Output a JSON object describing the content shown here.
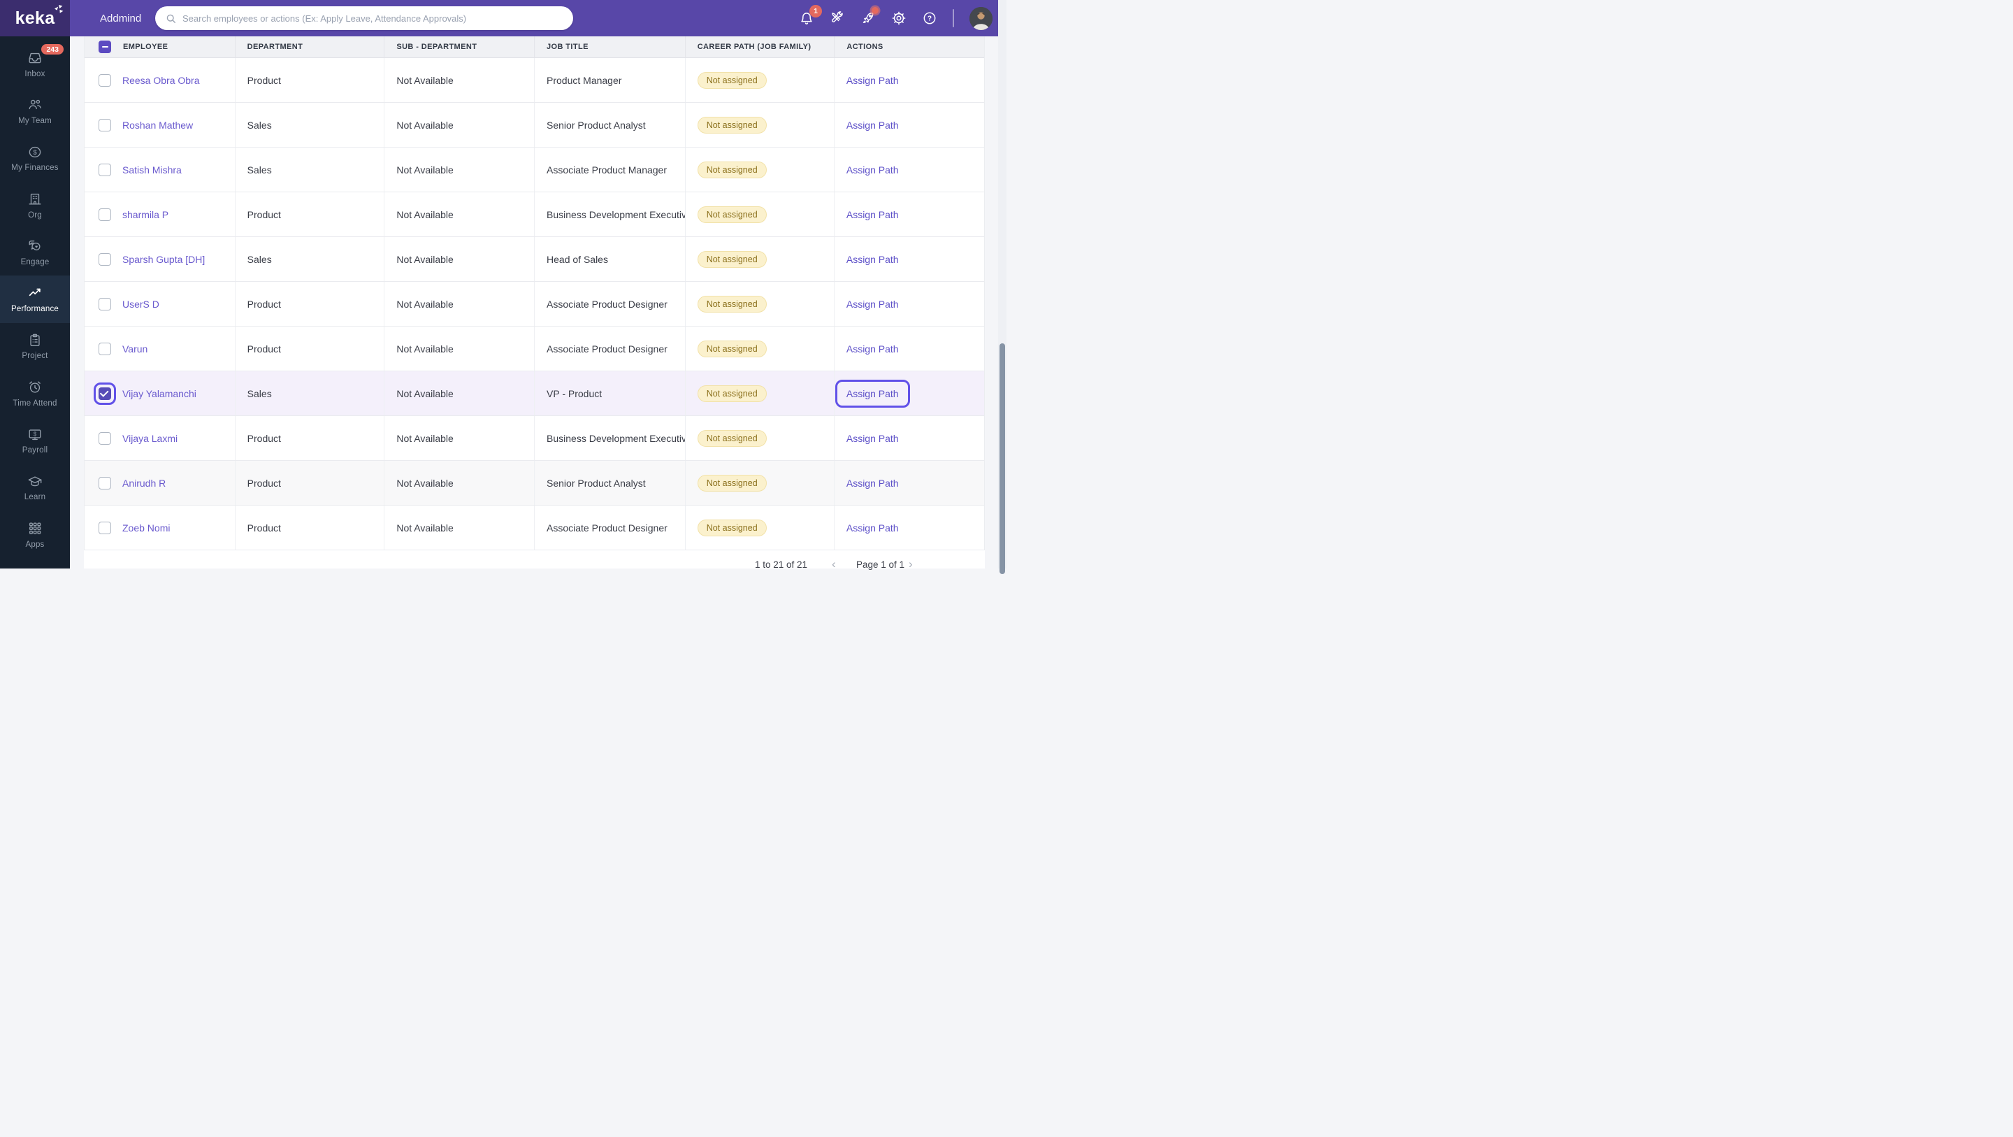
{
  "topbar": {
    "brand": "keka",
    "workspace": "Addmind",
    "search": {
      "placeholder": "Search employees or actions (Ex: Apply Leave, Attendance Approvals)"
    },
    "notification_badge": "1"
  },
  "sidebar": {
    "items": [
      {
        "icon": "inbox-icon",
        "label": "Inbox",
        "badge": "243",
        "active": false
      },
      {
        "icon": "people-icon",
        "label": "My Team",
        "active": false
      },
      {
        "icon": "dollar-circle-icon",
        "label": "My Finances",
        "active": false
      },
      {
        "icon": "building-icon",
        "label": "Org",
        "active": false
      },
      {
        "icon": "chat-heart-icon",
        "label": "Engage",
        "active": false
      },
      {
        "icon": "trending-up-icon",
        "label": "Performance",
        "active": true
      },
      {
        "icon": "clipboard-icon",
        "label": "Project",
        "active": false
      },
      {
        "icon": "alarm-clock-icon",
        "label": "Time Attend",
        "active": false
      },
      {
        "icon": "monitor-dollar-icon",
        "label": "Payroll",
        "active": false
      },
      {
        "icon": "graduation-cap-icon",
        "label": "Learn",
        "active": false
      },
      {
        "icon": "apps-grid-icon",
        "label": "Apps",
        "active": false
      }
    ]
  },
  "table": {
    "columns": [
      "EMPLOYEE",
      "DEPARTMENT",
      "SUB - DEPARTMENT",
      "JOB TITLE",
      "CAREER PATH (JOB FAMILY)",
      "ACTIONS"
    ],
    "header_checkbox_state": "indeterminate",
    "rows": [
      {
        "name": "Reesa Obra Obra",
        "department": "Product",
        "sub_department": "Not Available",
        "job_title": "Product Manager",
        "career_path": "Not assigned",
        "action": "Assign Path",
        "selected": false,
        "shaded": false
      },
      {
        "name": "Roshan Mathew",
        "department": "Sales",
        "sub_department": "Not Available",
        "job_title": "Senior Product Analyst",
        "career_path": "Not assigned",
        "action": "Assign Path",
        "selected": false,
        "shaded": false
      },
      {
        "name": "Satish Mishra",
        "department": "Sales",
        "sub_department": "Not Available",
        "job_title": "Associate Product Manager",
        "career_path": "Not assigned",
        "action": "Assign Path",
        "selected": false,
        "shaded": false
      },
      {
        "name": "sharmila P",
        "department": "Product",
        "sub_department": "Not Available",
        "job_title": "Business Development Executiv",
        "career_path": "Not assigned",
        "action": "Assign Path",
        "selected": false,
        "shaded": false
      },
      {
        "name": "Sparsh Gupta [DH]",
        "department": "Sales",
        "sub_department": "Not Available",
        "job_title": "Head of Sales",
        "career_path": "Not assigned",
        "action": "Assign Path",
        "selected": false,
        "shaded": false
      },
      {
        "name": "UserS D",
        "department": "Product",
        "sub_department": "Not Available",
        "job_title": "Associate Product Designer",
        "career_path": "Not assigned",
        "action": "Assign Path",
        "selected": false,
        "shaded": false
      },
      {
        "name": "Varun",
        "department": "Product",
        "sub_department": "Not Available",
        "job_title": "Associate Product Designer",
        "career_path": "Not assigned",
        "action": "Assign Path",
        "selected": false,
        "shaded": false
      },
      {
        "name": "Vijay Yalamanchi",
        "department": "Sales",
        "sub_department": "Not Available",
        "job_title": "VP - Product",
        "career_path": "Not assigned",
        "action": "Assign Path",
        "selected": true,
        "shaded": false
      },
      {
        "name": "Vijaya Laxmi",
        "department": "Product",
        "sub_department": "Not Available",
        "job_title": "Business Development Executiv",
        "career_path": "Not assigned",
        "action": "Assign Path",
        "selected": false,
        "shaded": false
      },
      {
        "name": "Anirudh R",
        "department": "Product",
        "sub_department": "Not Available",
        "job_title": "Senior Product Analyst",
        "career_path": "Not assigned",
        "action": "Assign Path",
        "selected": false,
        "shaded": true
      },
      {
        "name": "Zoeb Nomi",
        "department": "Product",
        "sub_department": "Not Available",
        "job_title": "Associate Product Designer",
        "career_path": "Not assigned",
        "action": "Assign Path",
        "selected": false,
        "shaded": false
      }
    ]
  },
  "pagination": {
    "range": "1 to 21 of 21",
    "prev": "‹",
    "page": "Page 1 of 1",
    "next": "›"
  },
  "colors": {
    "accent_purple": "#6151e8",
    "topbar_purple": "#5847a8",
    "logo_bg": "#3b2d6e",
    "sidebar_bg": "#16212f",
    "badge_red": "#e4695e",
    "link_purple": "#6a5ace",
    "pill_bg": "#fbf1cd",
    "pill_text": "#8b701c",
    "selected_row_bg": "#f4f0fb"
  }
}
